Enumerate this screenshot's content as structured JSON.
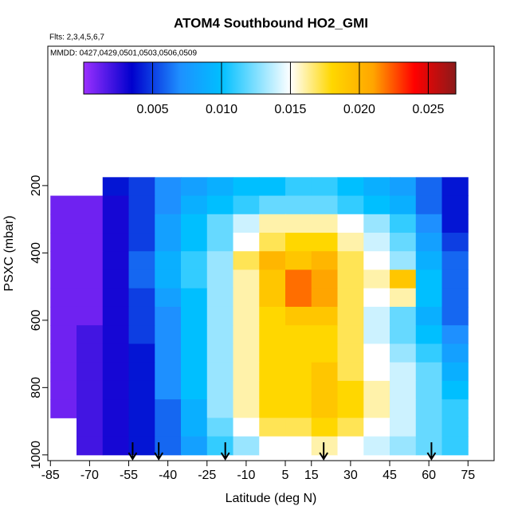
{
  "chart_data": {
    "type": "heatmap",
    "title": "ATOM4 Southbound HO2_GMI",
    "subtitle": "Flts: 2,3,4,5,6,7",
    "annotation": "MMDD: 0427,0429,0501,0503,0506,0509",
    "xlabel": "Latitude (deg N)",
    "ylabel": "PSXC (mbar)",
    "xlim": [
      -86,
      85
    ],
    "ylim": [
      1017,
      -214
    ],
    "xticks": [
      -85,
      -70,
      -55,
      -40,
      -25,
      -10,
      5,
      15,
      30,
      45,
      60,
      75
    ],
    "yticks": [
      200,
      400,
      600,
      800,
      1000
    ],
    "clim": [
      0,
      0.027
    ],
    "cticks": [
      0.005,
      {
        "value": 0.01,
        "label": "0.010"
      },
      0.015,
      {
        "value": 0.02,
        "label": "0.020"
      },
      0.025
    ],
    "colorscale": [
      [
        0,
        "#9b30ff"
      ],
      [
        0.0035,
        "#0000cd"
      ],
      [
        0.007,
        "#1e90ff"
      ],
      [
        0.01,
        "#00bfff"
      ],
      [
        0.015,
        "#ffffff"
      ],
      [
        0.018,
        "#ffd700"
      ],
      [
        0.021,
        "#ffa500"
      ],
      [
        0.024,
        "#ff0000"
      ],
      [
        0.027,
        "#8b1a1a"
      ]
    ],
    "lat_edges": [
      -85,
      -75,
      -65,
      -55,
      -45,
      -35,
      -25,
      -15,
      -5,
      5,
      15,
      25,
      35,
      45,
      55,
      65,
      75
    ],
    "pressure_edges": [
      175,
      230,
      285,
      340,
      395,
      450,
      505,
      560,
      615,
      670,
      725,
      780,
      835,
      890,
      945,
      1000
    ],
    "values": [
      [
        null,
        null,
        0.004,
        0.005,
        0.007,
        0.008,
        0.009,
        0.01,
        0.01,
        0.011,
        0.011,
        0.01,
        0.009,
        0.008,
        0.006,
        0.004
      ],
      [
        0.001,
        0.001,
        0.003,
        0.005,
        0.007,
        0.009,
        0.01,
        0.011,
        0.012,
        0.012,
        0.012,
        0.011,
        0.01,
        0.009,
        0.006,
        0.004
      ],
      [
        0.001,
        0.001,
        0.003,
        0.005,
        0.008,
        0.01,
        0.012,
        0.014,
        0.016,
        0.016,
        0.016,
        0.015,
        0.013,
        0.011,
        0.007,
        0.004
      ],
      [
        0.001,
        0.001,
        0.003,
        0.005,
        0.008,
        0.01,
        0.012,
        0.015,
        0.017,
        0.018,
        0.018,
        0.016,
        0.014,
        0.012,
        0.008,
        0.005
      ],
      [
        0.001,
        0.001,
        0.003,
        0.006,
        0.009,
        0.011,
        0.013,
        0.017,
        0.02,
        0.019,
        0.02,
        0.017,
        0.015,
        0.013,
        0.009,
        0.006
      ],
      [
        0.001,
        0.001,
        0.003,
        0.006,
        0.009,
        0.011,
        0.013,
        0.016,
        0.019,
        0.022,
        0.021,
        0.017,
        0.016,
        0.019,
        0.01,
        0.006
      ],
      [
        0.001,
        0.001,
        0.003,
        0.005,
        0.008,
        0.01,
        0.013,
        0.016,
        0.019,
        0.022,
        0.021,
        0.017,
        0.015,
        0.016,
        0.01,
        0.006
      ],
      [
        0.001,
        0.001,
        0.003,
        0.005,
        0.007,
        0.01,
        0.013,
        0.016,
        0.018,
        0.019,
        0.019,
        0.017,
        0.014,
        0.012,
        0.009,
        0.006
      ],
      [
        0.001,
        0.002,
        0.003,
        0.005,
        0.007,
        0.01,
        0.013,
        0.016,
        0.018,
        0.018,
        0.018,
        0.017,
        0.014,
        0.012,
        0.01,
        0.007
      ],
      [
        0.001,
        0.002,
        0.003,
        0.004,
        0.007,
        0.01,
        0.013,
        0.016,
        0.018,
        0.018,
        0.018,
        0.017,
        0.015,
        0.013,
        0.011,
        0.008
      ],
      [
        0.001,
        0.002,
        0.003,
        0.004,
        0.007,
        0.01,
        0.013,
        0.016,
        0.018,
        0.018,
        0.019,
        0.017,
        0.015,
        0.014,
        0.012,
        0.009
      ],
      [
        0.001,
        0.002,
        0.003,
        0.004,
        0.007,
        0.01,
        0.013,
        0.016,
        0.018,
        0.018,
        0.019,
        0.018,
        0.016,
        0.014,
        0.012,
        0.01
      ],
      [
        0.001,
        0.002,
        0.003,
        0.004,
        0.006,
        0.009,
        0.013,
        0.016,
        0.018,
        0.018,
        0.019,
        0.018,
        0.016,
        0.014,
        0.012,
        0.011
      ],
      [
        null,
        0.002,
        0.003,
        0.004,
        0.006,
        0.009,
        0.012,
        0.015,
        0.017,
        0.017,
        0.018,
        0.017,
        0.015,
        0.014,
        0.012,
        0.011
      ],
      [
        null,
        0.002,
        0.003,
        0.004,
        0.006,
        0.008,
        0.011,
        0.013,
        0.015,
        0.015,
        0.016,
        0.015,
        0.014,
        0.013,
        0.012,
        0.011
      ]
    ],
    "arrow_lats": [
      -53.5,
      -43.5,
      -18,
      19.7,
      61
    ]
  }
}
